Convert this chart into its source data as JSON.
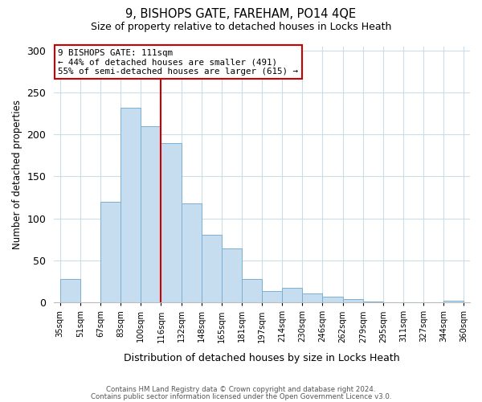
{
  "title": "9, BISHOPS GATE, FAREHAM, PO14 4QE",
  "subtitle": "Size of property relative to detached houses in Locks Heath",
  "xlabel": "Distribution of detached houses by size in Locks Heath",
  "ylabel": "Number of detached properties",
  "bar_labels": [
    "35sqm",
    "51sqm",
    "67sqm",
    "83sqm",
    "100sqm",
    "116sqm",
    "132sqm",
    "148sqm",
    "165sqm",
    "181sqm",
    "197sqm",
    "214sqm",
    "230sqm",
    "246sqm",
    "262sqm",
    "279sqm",
    "295sqm",
    "311sqm",
    "327sqm",
    "344sqm",
    "360sqm"
  ],
  "bar_heights": [
    28,
    0,
    120,
    232,
    210,
    190,
    118,
    81,
    64,
    28,
    14,
    17,
    11,
    7,
    4,
    1,
    0,
    0,
    0,
    2
  ],
  "bar_color": "#c5ddef",
  "bar_edge_color": "#7ab0d4",
  "vline_label_idx": 5,
  "vline_color": "#cc0000",
  "ylim": [
    0,
    305
  ],
  "yticks": [
    0,
    50,
    100,
    150,
    200,
    250,
    300
  ],
  "annotation_title": "9 BISHOPS GATE: 111sqm",
  "annotation_line1": "← 44% of detached houses are smaller (491)",
  "annotation_line2": "55% of semi-detached houses are larger (615) →",
  "footer1": "Contains HM Land Registry data © Crown copyright and database right 2024.",
  "footer2": "Contains public sector information licensed under the Open Government Licence v3.0.",
  "bg_color": "#ffffff",
  "grid_color": "#ccdde8"
}
